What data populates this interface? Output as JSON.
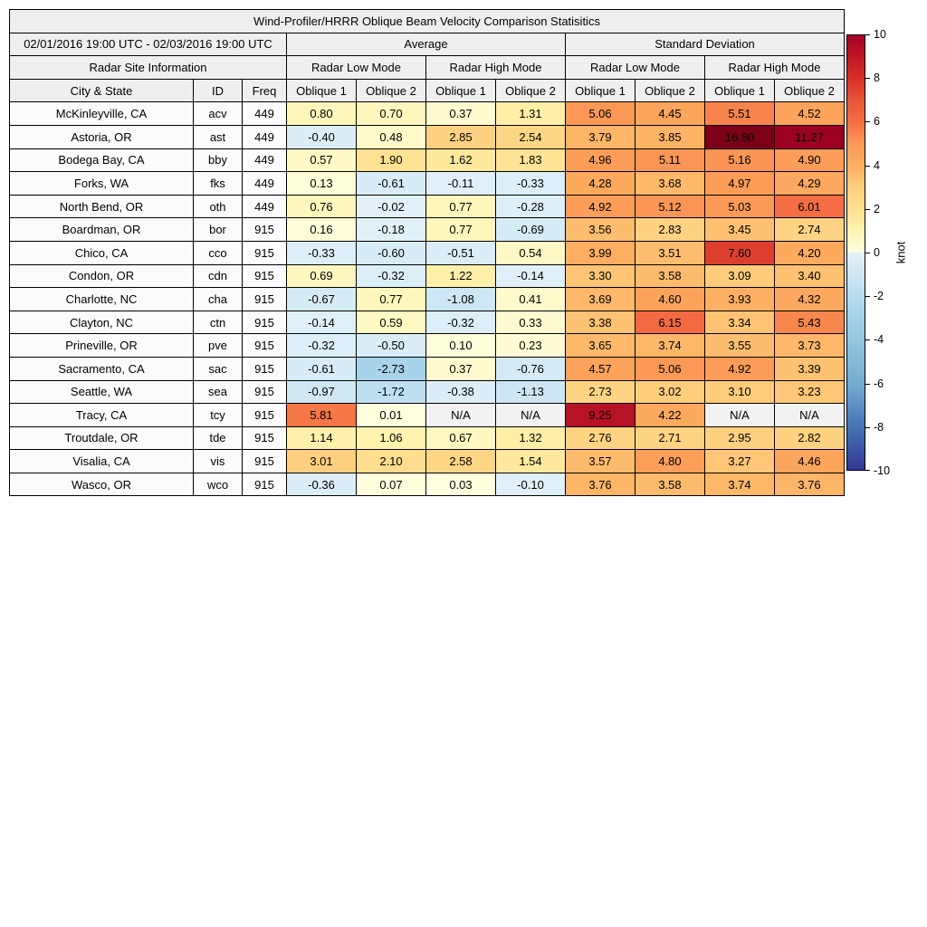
{
  "chart_data": {
    "type": "heatmap",
    "title": "Wind-Profiler/HRRR Oblique Beam Velocity Comparison Statisitics",
    "subheader": {
      "date_range": "02/01/2016 19:00 UTC - 02/03/2016 19:00 UTC",
      "average_label": "Average",
      "stddev_label": "Standard Deviation",
      "site_info_label": "Radar Site Information",
      "low_mode_label": "Radar Low Mode",
      "high_mode_label": "Radar High Mode",
      "city_label": "City & State",
      "id_label": "ID",
      "freq_label": "Freq",
      "oblique1_label": "Oblique 1",
      "oblique2_label": "Oblique 2"
    },
    "value_columns": [
      "Avg Low Oblique 1",
      "Avg Low Oblique 2",
      "Avg High Oblique 1",
      "Avg High Oblique 2",
      "Std Low Oblique 1",
      "Std Low Oblique 2",
      "Std High Oblique 1",
      "Std High Oblique 2"
    ],
    "rows": [
      {
        "city": "McKinleyville, CA",
        "id": "acv",
        "freq": "449",
        "values": [
          "0.80",
          "0.70",
          "0.37",
          "1.31",
          "5.06",
          "4.45",
          "5.51",
          "4.52"
        ]
      },
      {
        "city": "Astoria, OR",
        "id": "ast",
        "freq": "449",
        "values": [
          "-0.40",
          "0.48",
          "2.85",
          "2.54",
          "3.79",
          "3.85",
          "16.80",
          "11.27"
        ]
      },
      {
        "city": "Bodega Bay, CA",
        "id": "bby",
        "freq": "449",
        "values": [
          "0.57",
          "1.90",
          "1.62",
          "1.83",
          "4.96",
          "5.11",
          "5.16",
          "4.90"
        ]
      },
      {
        "city": "Forks, WA",
        "id": "fks",
        "freq": "449",
        "values": [
          "0.13",
          "-0.61",
          "-0.11",
          "-0.33",
          "4.28",
          "3.68",
          "4.97",
          "4.29"
        ]
      },
      {
        "city": "North Bend, OR",
        "id": "oth",
        "freq": "449",
        "values": [
          "0.76",
          "-0.02",
          "0.77",
          "-0.28",
          "4.92",
          "5.12",
          "5.03",
          "6.01"
        ]
      },
      {
        "city": "Boardman, OR",
        "id": "bor",
        "freq": "915",
        "values": [
          "0.16",
          "-0.18",
          "0.77",
          "-0.69",
          "3.56",
          "2.83",
          "3.45",
          "2.74"
        ]
      },
      {
        "city": "Chico, CA",
        "id": "cco",
        "freq": "915",
        "values": [
          "-0.33",
          "-0.60",
          "-0.51",
          "0.54",
          "3.99",
          "3.51",
          "7.60",
          "4.20"
        ]
      },
      {
        "city": "Condon, OR",
        "id": "cdn",
        "freq": "915",
        "values": [
          "0.69",
          "-0.32",
          "1.22",
          "-0.14",
          "3.30",
          "3.58",
          "3.09",
          "3.40"
        ]
      },
      {
        "city": "Charlotte, NC",
        "id": "cha",
        "freq": "915",
        "values": [
          "-0.67",
          "0.77",
          "-1.08",
          "0.41",
          "3.69",
          "4.60",
          "3.93",
          "4.32"
        ]
      },
      {
        "city": "Clayton, NC",
        "id": "ctn",
        "freq": "915",
        "values": [
          "-0.14",
          "0.59",
          "-0.32",
          "0.33",
          "3.38",
          "6.15",
          "3.34",
          "5.43"
        ]
      },
      {
        "city": "Prineville, OR",
        "id": "pve",
        "freq": "915",
        "values": [
          "-0.32",
          "-0.50",
          "0.10",
          "0.23",
          "3.65",
          "3.74",
          "3.55",
          "3.73"
        ]
      },
      {
        "city": "Sacramento, CA",
        "id": "sac",
        "freq": "915",
        "values": [
          "-0.61",
          "-2.73",
          "0.37",
          "-0.76",
          "4.57",
          "5.06",
          "4.92",
          "3.39"
        ]
      },
      {
        "city": "Seattle, WA",
        "id": "sea",
        "freq": "915",
        "values": [
          "-0.97",
          "-1.72",
          "-0.38",
          "-1.13",
          "2.73",
          "3.02",
          "3.10",
          "3.23"
        ]
      },
      {
        "city": "Tracy, CA",
        "id": "tcy",
        "freq": "915",
        "values": [
          "5.81",
          "0.01",
          "N/A",
          "N/A",
          "9.25",
          "4.22",
          "N/A",
          "N/A"
        ]
      },
      {
        "city": "Troutdale, OR",
        "id": "tde",
        "freq": "915",
        "values": [
          "1.14",
          "1.06",
          "0.67",
          "1.32",
          "2.76",
          "2.71",
          "2.95",
          "2.82"
        ]
      },
      {
        "city": "Visalia, CA",
        "id": "vis",
        "freq": "915",
        "values": [
          "3.01",
          "2.10",
          "2.58",
          "1.54",
          "3.57",
          "4.80",
          "3.27",
          "4.46"
        ]
      },
      {
        "city": "Wasco, OR",
        "id": "wco",
        "freq": "915",
        "values": [
          "-0.36",
          "0.07",
          "0.03",
          "-0.10",
          "3.76",
          "3.58",
          "3.74",
          "3.76"
        ]
      }
    ],
    "colorbar": {
      "label": "knot",
      "min": -10,
      "max": 10,
      "ticks": [
        "10",
        "8",
        "6",
        "4",
        "2",
        "0",
        "-2",
        "-4",
        "-6",
        "-8",
        "-10"
      ]
    },
    "colormap_anchors": [
      [
        -10,
        "#313695"
      ],
      [
        -8,
        "#4575b4"
      ],
      [
        -6,
        "#74add1"
      ],
      [
        -4,
        "#93c7e0"
      ],
      [
        -3,
        "#a2d1e8"
      ],
      [
        -2,
        "#b7ddef"
      ],
      [
        -1,
        "#cfe8f4"
      ],
      [
        -0.02,
        "#e2f1f8"
      ],
      [
        0,
        "#ffffe0"
      ],
      [
        1,
        "#fff4b0"
      ],
      [
        2,
        "#fee090"
      ],
      [
        3,
        "#fecf7e"
      ],
      [
        4,
        "#fdae61"
      ],
      [
        5,
        "#fb9b57"
      ],
      [
        6,
        "#f46d43"
      ],
      [
        7,
        "#e7553a"
      ],
      [
        8,
        "#d73027"
      ],
      [
        10,
        "#a50026"
      ],
      [
        12,
        "#97001f"
      ],
      [
        17,
        "#7a0018"
      ]
    ]
  },
  "ui_colors": {
    "header_bg": "#efefef",
    "site_bg": "#fbfbfb",
    "na_bg": "#f2f2f2",
    "border": "#000000"
  }
}
